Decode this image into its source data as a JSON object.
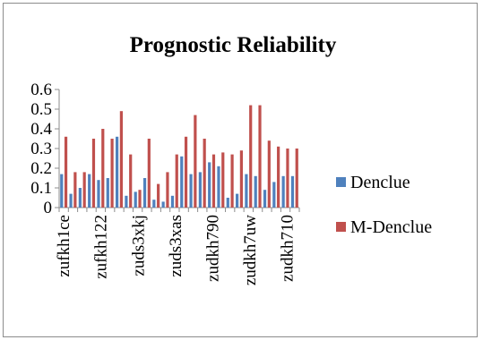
{
  "chart_data": {
    "type": "bar",
    "title": "Prognostic Reliability",
    "xlabel": "",
    "ylabel": "",
    "ylim": [
      0,
      0.6
    ],
    "yticks": [
      "0",
      "0.1",
      "0.2",
      "0.3",
      "0.4",
      "0.5",
      "0.6"
    ],
    "category_count": 26,
    "category_labels_shown": [
      {
        "index": 1,
        "label": "zufkh1ce"
      },
      {
        "index": 6,
        "label": "zufkh122"
      },
      {
        "index": 11,
        "label": "zuds3xkj"
      },
      {
        "index": 16,
        "label": "zuds3xas"
      },
      {
        "index": 21,
        "label": "zudkh790"
      },
      {
        "index": 26,
        "label": "zudkh7uw"
      },
      {
        "index": 31,
        "label": "zudkh710"
      }
    ],
    "series": [
      {
        "name": "Denclue",
        "color": "#4f81bd",
        "values": [
          0.17,
          0.07,
          0.1,
          0.17,
          0.14,
          0.15,
          0.36,
          0.06,
          0.08,
          0.15,
          0.04,
          0.03,
          0.06,
          0.26,
          0.17,
          0.18,
          0.23,
          0.21,
          0.05,
          0.07,
          0.17,
          0.16,
          0.09,
          0.13,
          0.16,
          0.16
        ]
      },
      {
        "name": "M-Denclue",
        "color": "#c0504d",
        "values": [
          0.36,
          0.18,
          0.18,
          0.35,
          0.4,
          0.35,
          0.49,
          0.27,
          0.09,
          0.35,
          0.12,
          0.18,
          0.27,
          0.36,
          0.47,
          0.35,
          0.27,
          0.28,
          0.27,
          0.29,
          0.52,
          0.52,
          0.34,
          0.31,
          0.3,
          0.3
        ]
      }
    ],
    "legend": "right",
    "grid": false
  }
}
